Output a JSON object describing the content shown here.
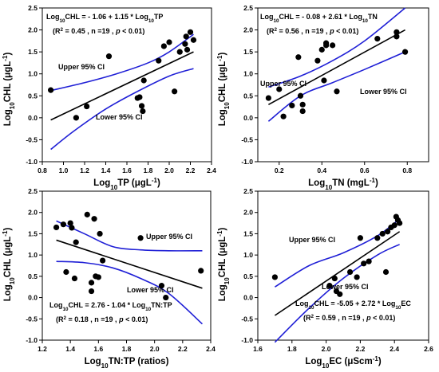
{
  "chart_data": [
    {
      "type": "scatter",
      "xlabel": [
        "Log",
        "10",
        "TP (",
        "μ",
        "gL",
        "-1",
        ")"
      ],
      "ylabel": [
        "Log",
        "10",
        "CHL (",
        "μ",
        "gL",
        "-1",
        ")"
      ],
      "xlim": [
        0.8,
        2.4
      ],
      "ylim": [
        -1.0,
        2.5
      ],
      "xticks": [
        "0.8",
        "1.0",
        "1.2",
        "1.4",
        "1.6",
        "1.8",
        "2.0",
        "2.2",
        "2.4"
      ],
      "yticks": [
        "-1.0",
        "-0.5",
        "0.0",
        "0.5",
        "1.0",
        "1.5",
        "2.0",
        "2.5"
      ],
      "equation": [
        "Log",
        "10",
        "CHL = - 1.06 + 1.15 * Log",
        "10",
        "TP"
      ],
      "stats": [
        "(R",
        "2",
        " = 0.45 , n =19 , ",
        "p",
        " < 0.01)"
      ],
      "upper_label": "Upper 95% CI",
      "lower_label": "Lower 95% CI",
      "points": [
        [
          0.88,
          0.63
        ],
        [
          1.12,
          0.0
        ],
        [
          1.22,
          0.26
        ],
        [
          1.43,
          1.4
        ],
        [
          1.7,
          0.45
        ],
        [
          1.72,
          0.47
        ],
        [
          1.74,
          0.27
        ],
        [
          1.75,
          0.15
        ],
        [
          1.76,
          0.85
        ],
        [
          1.9,
          1.3
        ],
        [
          1.95,
          1.63
        ],
        [
          2.0,
          1.72
        ],
        [
          2.05,
          0.6
        ],
        [
          2.1,
          1.5
        ],
        [
          2.15,
          1.68
        ],
        [
          2.16,
          1.85
        ],
        [
          2.17,
          1.55
        ],
        [
          2.2,
          1.95
        ],
        [
          2.23,
          1.77
        ]
      ],
      "fit": [
        [
          0.88,
          -0.05
        ],
        [
          2.23,
          1.5
        ]
      ],
      "upper_ci": [
        [
          0.88,
          0.62
        ],
        [
          1.2,
          0.8
        ],
        [
          1.5,
          1.0
        ],
        [
          1.8,
          1.25
        ],
        [
          2.0,
          1.5
        ],
        [
          2.23,
          1.9
        ]
      ],
      "lower_ci": [
        [
          0.88,
          -0.72
        ],
        [
          1.1,
          -0.3
        ],
        [
          1.4,
          0.2
        ],
        [
          1.7,
          0.6
        ],
        [
          2.0,
          0.95
        ],
        [
          2.23,
          1.12
        ]
      ],
      "point_color": "#000000",
      "fit_color": "#000000",
      "ci_color": "#1f1fd6"
    },
    {
      "type": "scatter",
      "xlabel": [
        "Log",
        "10",
        "TN (mgL",
        "-1",
        ")"
      ],
      "ylabel": [
        "Log",
        "10",
        "CHL (",
        "μ",
        "gL",
        "-1",
        ")"
      ],
      "xlim": [
        0.1,
        0.9
      ],
      "ylim": [
        -1.0,
        2.5
      ],
      "xticks": [
        "0.2",
        "0.4",
        "0.6",
        "0.8"
      ],
      "yticks": [
        "-1.0",
        "-0.5",
        "0.0",
        "0.5",
        "1.0",
        "1.5",
        "2.0",
        "2.5"
      ],
      "equation": [
        "Log",
        "10",
        "CHL = - 0.08 + 2.61 * Log",
        "10",
        "TN"
      ],
      "stats": [
        "(R",
        "2",
        " = 0.56 , n =19 , ",
        "p",
        " < 0.01)"
      ],
      "upper_label": "Upper 95% CI",
      "lower_label": "Lower 95% CI",
      "points": [
        [
          0.15,
          0.45
        ],
        [
          0.2,
          0.65
        ],
        [
          0.22,
          0.03
        ],
        [
          0.26,
          0.28
        ],
        [
          0.29,
          1.38
        ],
        [
          0.3,
          0.5
        ],
        [
          0.31,
          0.3
        ],
        [
          0.31,
          0.15
        ],
        [
          0.38,
          1.3
        ],
        [
          0.4,
          1.55
        ],
        [
          0.41,
          0.85
        ],
        [
          0.42,
          1.65
        ],
        [
          0.42,
          1.7
        ],
        [
          0.45,
          1.65
        ],
        [
          0.47,
          0.6
        ],
        [
          0.66,
          1.8
        ],
        [
          0.75,
          1.85
        ],
        [
          0.75,
          1.95
        ],
        [
          0.79,
          1.5
        ]
      ],
      "fit": [
        [
          0.15,
          0.3
        ],
        [
          0.79,
          2.0
        ]
      ],
      "upper_ci": [
        [
          0.15,
          0.7
        ],
        [
          0.3,
          0.95
        ],
        [
          0.45,
          1.3
        ],
        [
          0.6,
          1.75
        ],
        [
          0.79,
          2.5
        ]
      ],
      "lower_ci": [
        [
          0.15,
          -0.08
        ],
        [
          0.3,
          0.5
        ],
        [
          0.45,
          0.8
        ],
        [
          0.6,
          1.1
        ],
        [
          0.79,
          1.5
        ]
      ],
      "point_color": "#000000",
      "fit_color": "#000000",
      "ci_color": "#1f1fd6"
    },
    {
      "type": "scatter",
      "xlabel": [
        "Log",
        "10",
        "TN:TP (ratios)"
      ],
      "ylabel": [
        "Log",
        "10",
        "CHL (",
        "μ",
        "gL",
        "-1",
        ")"
      ],
      "xlim": [
        1.2,
        2.4
      ],
      "ylim": [
        -1.0,
        2.5
      ],
      "xticks": [
        "1.2",
        "1.4",
        "1.6",
        "1.8",
        "2.0",
        "2.2",
        "2.4"
      ],
      "yticks": [
        "-1.0",
        "-0.5",
        "0.0",
        "0.5",
        "1.0",
        "1.5",
        "2.0",
        "2.5"
      ],
      "equation": [
        "Log",
        "10",
        "CHL = 2.76 - 1.04 * Log",
        "10",
        "TN:TP"
      ],
      "stats": [
        "(R",
        "2",
        " = 0.18 , n =19 , ",
        "p",
        " < 0.01)"
      ],
      "upper_label": "Upper 95% CI",
      "lower_label": "Lower 95% CI",
      "points": [
        [
          1.3,
          1.65
        ],
        [
          1.35,
          1.72
        ],
        [
          1.37,
          0.6
        ],
        [
          1.4,
          1.75
        ],
        [
          1.41,
          1.64
        ],
        [
          1.43,
          0.45
        ],
        [
          1.44,
          1.3
        ],
        [
          1.52,
          1.95
        ],
        [
          1.55,
          0.35
        ],
        [
          1.57,
          1.85
        ],
        [
          1.58,
          0.5
        ],
        [
          1.6,
          0.48
        ],
        [
          1.61,
          1.5
        ],
        [
          1.63,
          0.87
        ],
        [
          1.9,
          1.4
        ],
        [
          2.05,
          0.28
        ],
        [
          2.08,
          0.0
        ],
        [
          2.33,
          0.63
        ],
        [
          1.55,
          0.15
        ]
      ],
      "fit": [
        [
          1.3,
          1.35
        ],
        [
          2.34,
          0.22
        ]
      ],
      "upper_ci": [
        [
          1.3,
          1.8
        ],
        [
          1.5,
          1.5
        ],
        [
          1.7,
          1.2
        ],
        [
          1.9,
          1.12
        ],
        [
          2.1,
          1.1
        ],
        [
          2.34,
          1.1
        ]
      ],
      "lower_ci": [
        [
          1.3,
          0.85
        ],
        [
          1.5,
          0.82
        ],
        [
          1.7,
          0.7
        ],
        [
          1.9,
          0.45
        ],
        [
          2.1,
          0.1
        ],
        [
          2.34,
          -0.62
        ]
      ],
      "point_color": "#000000",
      "fit_color": "#000000",
      "ci_color": "#1f1fd6"
    },
    {
      "type": "scatter",
      "xlabel": [
        "Log",
        "10",
        "EC (",
        "μ",
        "Scm",
        "-1",
        ")"
      ],
      "ylabel": [
        "Log",
        "10",
        "CHL (",
        "μ",
        "gL",
        "-1",
        ")"
      ],
      "xlim": [
        1.6,
        2.6
      ],
      "ylim": [
        -1.0,
        2.5
      ],
      "xticks": [
        "1.6",
        "1.8",
        "2.0",
        "2.2",
        "2.4",
        "2.6"
      ],
      "yticks": [
        "-1.0",
        "-0.5",
        "0.0",
        "0.5",
        "1.0",
        "1.5",
        "2.0",
        "2.5"
      ],
      "equation": [
        "Log",
        "10",
        "CHL = -5.05 + 2.72 * Log",
        "10",
        "EC"
      ],
      "stats": [
        "(R",
        "2",
        " = 0.59 , n =19 , ",
        "p",
        " < 0.01)"
      ],
      "upper_label": "Upper 95% CI",
      "lower_label": "Lower 95% CI",
      "points": [
        [
          1.7,
          0.48
        ],
        [
          2.02,
          0.28
        ],
        [
          2.05,
          0.45
        ],
        [
          2.06,
          0.15
        ],
        [
          2.08,
          0.08
        ],
        [
          2.14,
          0.6
        ],
        [
          2.18,
          0.48
        ],
        [
          2.2,
          1.4
        ],
        [
          2.22,
          0.8
        ],
        [
          2.25,
          0.85
        ],
        [
          2.3,
          1.4
        ],
        [
          2.33,
          1.5
        ],
        [
          2.35,
          0.6
        ],
        [
          2.36,
          1.55
        ],
        [
          2.38,
          1.65
        ],
        [
          2.4,
          1.7
        ],
        [
          2.41,
          1.9
        ],
        [
          2.42,
          1.82
        ],
        [
          2.43,
          1.75
        ]
      ],
      "fit": [
        [
          1.7,
          -0.42
        ],
        [
          2.43,
          1.55
        ]
      ],
      "upper_ci": [
        [
          1.7,
          0.25
        ],
        [
          1.9,
          0.75
        ],
        [
          2.1,
          1.05
        ],
        [
          2.3,
          1.45
        ],
        [
          2.43,
          1.85
        ]
      ],
      "lower_ci": [
        [
          1.7,
          -1.05
        ],
        [
          1.9,
          -0.25
        ],
        [
          2.1,
          0.45
        ],
        [
          2.3,
          1.0
        ],
        [
          2.43,
          1.25
        ]
      ],
      "point_color": "#000000",
      "fit_color": "#000000",
      "ci_color": "#1f1fd6"
    }
  ]
}
